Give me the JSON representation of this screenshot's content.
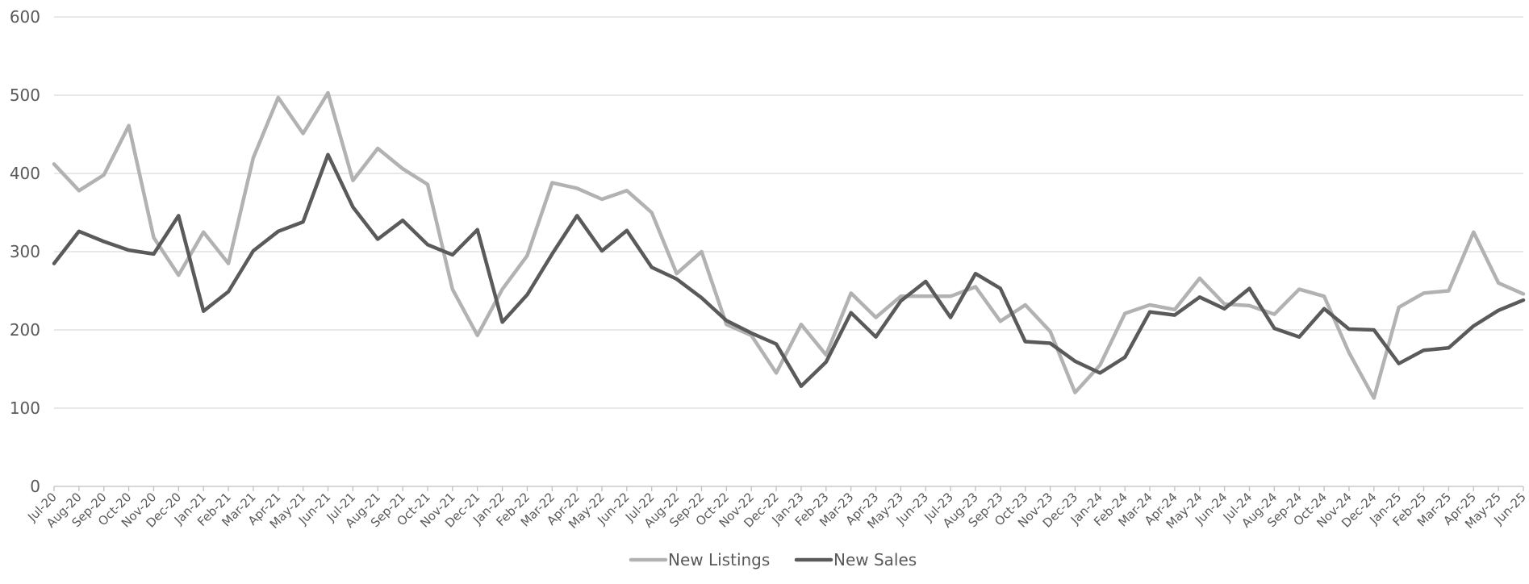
{
  "chart_data": {
    "type": "line",
    "title": "",
    "xlabel": "",
    "ylabel": "",
    "ylim": [
      0,
      600
    ],
    "yticks": [
      0,
      100,
      200,
      300,
      400,
      500,
      600
    ],
    "grid": true,
    "legend_position": "bottom",
    "categories": [
      "Jul-20",
      "Aug-20",
      "Sep-20",
      "Oct-20",
      "Nov-20",
      "Dec-20",
      "Jan-21",
      "Feb-21",
      "Mar-21",
      "Apr-21",
      "May-21",
      "Jun-21",
      "Jul-21",
      "Aug-21",
      "Sep-21",
      "Oct-21",
      "Nov-21",
      "Dec-21",
      "Jan-22",
      "Feb-22",
      "Mar-22",
      "Apr-22",
      "May-22",
      "Jun-22",
      "Jul-22",
      "Aug-22",
      "Sep-22",
      "Oct-22",
      "Nov-22",
      "Dec-22",
      "Jan-23",
      "Feb-23",
      "Mar-23",
      "Apr-23",
      "May-23",
      "Jun-23",
      "Jul-23",
      "Aug-23",
      "Sep-23",
      "Oct-23",
      "Nov-23",
      "Dec-23",
      "Jan-24",
      "Feb-24",
      "Mar-24",
      "Apr-24",
      "May-24",
      "Jun-24",
      "Jul-24",
      "Aug-24",
      "Sep-24",
      "Oct-24",
      "Nov-24",
      "Dec-24",
      "Jan-25",
      "Feb-25",
      "Mar-25",
      "Apr-25",
      "May-25",
      "Jun-25"
    ],
    "series": [
      {
        "name": "New Listings",
        "color": "#b2b2b2",
        "values": [
          412,
          378,
          398,
          461,
          318,
          270,
          325,
          285,
          420,
          497,
          451,
          503,
          391,
          432,
          406,
          386,
          252,
          193,
          252,
          295,
          388,
          381,
          367,
          378,
          350,
          272,
          300,
          207,
          193,
          145,
          207,
          168,
          247,
          216,
          243,
          243,
          243,
          255,
          211,
          232,
          198,
          120,
          155,
          221,
          232,
          226,
          266,
          233,
          231,
          220,
          252,
          243,
          171,
          113,
          229,
          247,
          250,
          325,
          260,
          246
        ]
      },
      {
        "name": "New Sales",
        "color": "#5a5a5a",
        "values": [
          285,
          326,
          313,
          302,
          297,
          346,
          224,
          249,
          301,
          326,
          338,
          424,
          357,
          316,
          340,
          309,
          296,
          328,
          210,
          245,
          297,
          346,
          301,
          327,
          280,
          265,
          241,
          212,
          196,
          182,
          128,
          159,
          222,
          191,
          237,
          262,
          216,
          272,
          253,
          185,
          183,
          160,
          145,
          165,
          223,
          219,
          242,
          227,
          253,
          202,
          191,
          227,
          201,
          200,
          157,
          174,
          177,
          205,
          225,
          238
        ]
      }
    ]
  }
}
